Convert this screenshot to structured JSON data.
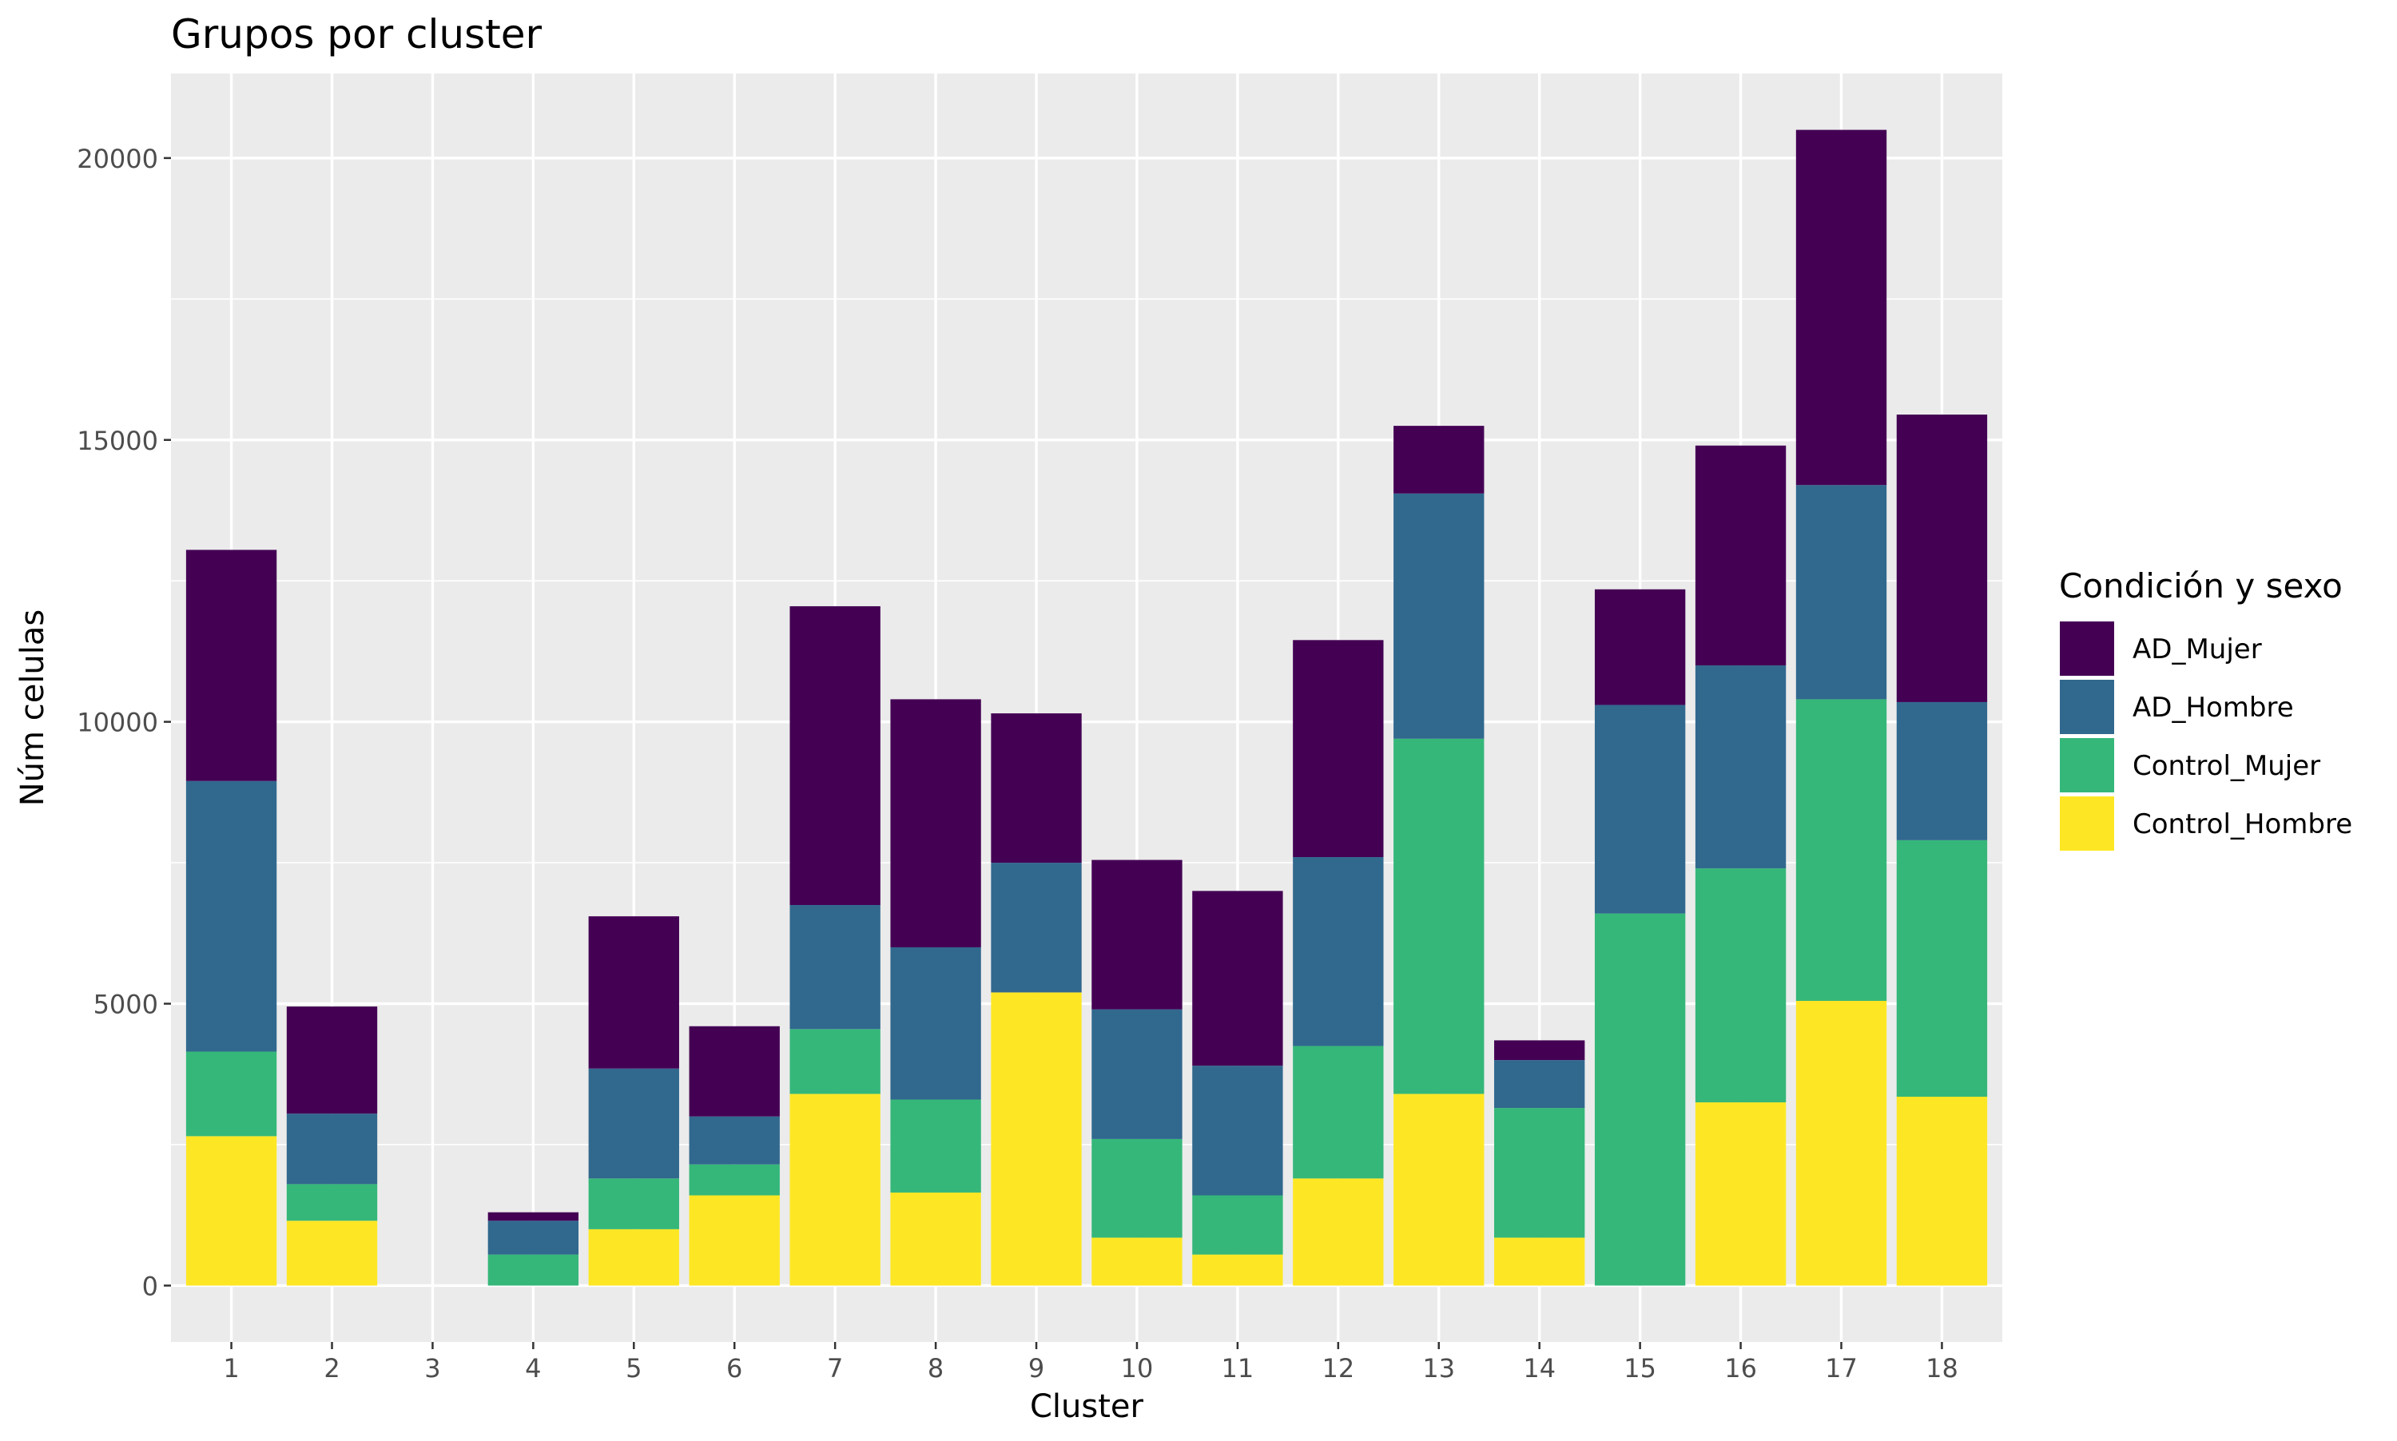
{
  "chart_data": {
    "type": "bar",
    "stacked": true,
    "title": "Grupos por cluster",
    "xlabel": "Cluster",
    "ylabel": "Núm celulas",
    "ylim": [
      -1000,
      21500
    ],
    "yticks": [
      0,
      5000,
      10000,
      15000,
      20000
    ],
    "grid": true,
    "legend_title": "Condición y sexo",
    "legend_position": "right",
    "categories": [
      "1",
      "2",
      "3",
      "4",
      "5",
      "6",
      "7",
      "8",
      "9",
      "10",
      "11",
      "12",
      "13",
      "14",
      "15",
      "16",
      "17",
      "18"
    ],
    "series": [
      {
        "name": "AD_Mujer",
        "color": "#440154",
        "values": [
          4100,
          1900,
          0,
          150,
          2700,
          1600,
          5300,
          4400,
          2650,
          2650,
          3100,
          3850,
          1200,
          350,
          2050,
          3900,
          6300,
          5100
        ]
      },
      {
        "name": "AD_Hombre",
        "color": "#31688E",
        "values": [
          4800,
          1250,
          0,
          600,
          1950,
          850,
          2200,
          2700,
          2300,
          2300,
          2300,
          3350,
          4350,
          850,
          3700,
          3600,
          3800,
          2450
        ]
      },
      {
        "name": "Control_Mujer",
        "color": "#35B779",
        "values": [
          1500,
          650,
          0,
          550,
          900,
          550,
          1150,
          1650,
          0,
          1750,
          1050,
          2350,
          6300,
          2300,
          6600,
          4150,
          5350,
          4550
        ]
      },
      {
        "name": "Control_Hombre",
        "color": "#FDE725",
        "values": [
          2650,
          1150,
          0,
          0,
          1000,
          1600,
          3400,
          1650,
          5200,
          850,
          550,
          1900,
          3400,
          850,
          0,
          3250,
          5050,
          3350
        ]
      }
    ]
  }
}
